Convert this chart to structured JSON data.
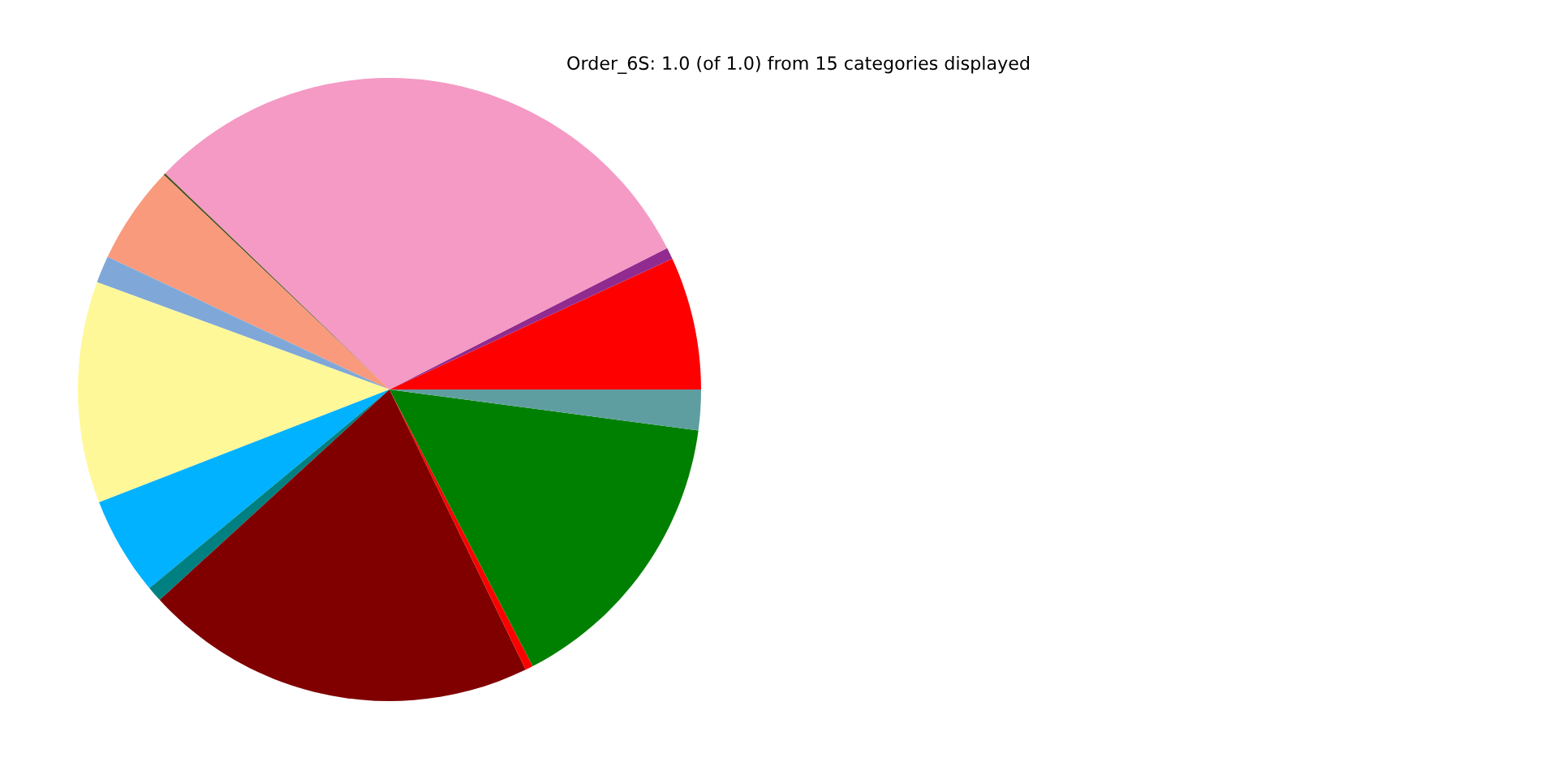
{
  "chart_data": {
    "type": "pie",
    "title": "Order_6S: 1.0 (of 1.0) from 15 categories displayed",
    "categories": [
      null,
      null,
      null,
      null,
      null,
      null,
      null,
      null,
      null,
      null,
      null,
      null,
      null
    ],
    "values": [
      6.9,
      0.6,
      30.3,
      0.1,
      5.1,
      1.4,
      11.5,
      5.1,
      0.8,
      20.4,
      0.4,
      15.3,
      2.1
    ],
    "colors": [
      "#ff0000",
      "#922b8f",
      "#f49ac4",
      "#4b5320",
      "#f99a7c",
      "#7fa8d8",
      "#fff899",
      "#00b2ff",
      "#008080",
      "#800000",
      "#ff0000",
      "#008000",
      "#5f9ea0"
    ],
    "legend": false
  }
}
